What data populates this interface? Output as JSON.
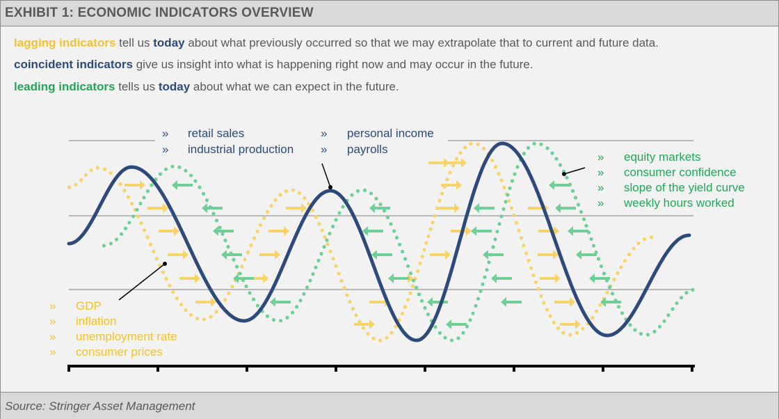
{
  "header": {
    "title": "EXHIBIT 1: ECONOMIC INDICATORS OVERVIEW"
  },
  "intro": {
    "line1": {
      "term": "lagging indicators",
      "a": " tell us ",
      "today": "today",
      "b": " about what previously occurred so that we may extrapolate that to current and future data."
    },
    "line2": {
      "term": "coincident indicators",
      "a": " give us insight into what is happening right now and may occur in the future."
    },
    "line3": {
      "term": "leading indicators",
      "a": " tells us ",
      "today": "today",
      "b": " about what we can expect in the future."
    }
  },
  "bullet_glyph": "»",
  "coincident_labels": {
    "col1": [
      "retail sales",
      "industrial production"
    ],
    "col2": [
      "personal income",
      "payrolls"
    ]
  },
  "leading_labels": [
    "equity markets",
    "consumer confidence",
    "slope of the yield curve",
    "weekly hours worked"
  ],
  "lagging_labels": [
    "GDP",
    "inflation",
    "unemployment rate",
    "consumer prices"
  ],
  "colors": {
    "coincident": "#2e4a7a",
    "lagging": "#f7d46a",
    "leading": "#6fcf97",
    "lagging_text": "#f2c230",
    "leading_text": "#23a65a",
    "text_gray": "#595959",
    "gridline": "#a6a6a6"
  },
  "footer": {
    "source": "Source: Stringer Asset Management"
  }
}
